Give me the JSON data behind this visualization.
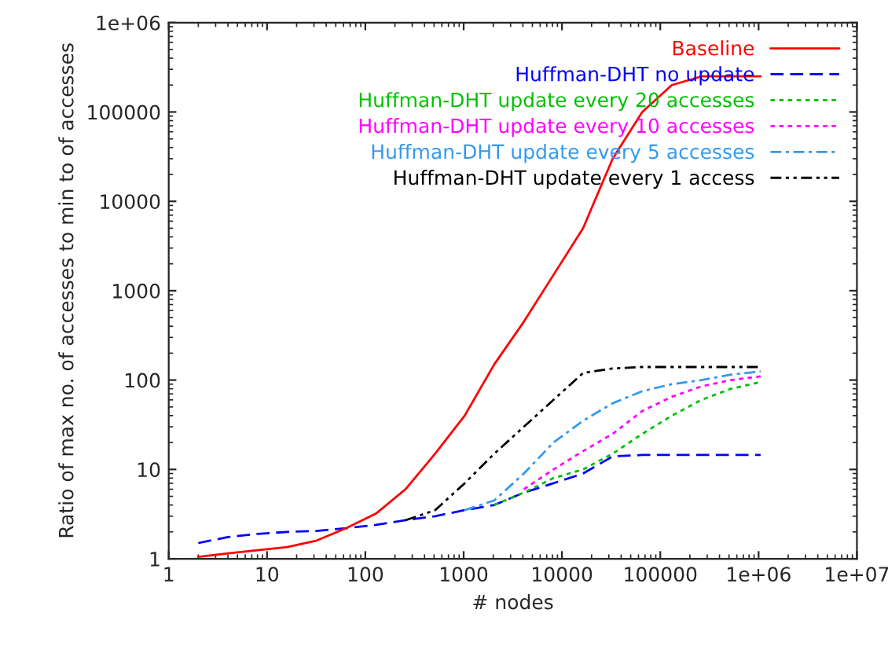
{
  "chart_data": {
    "type": "line",
    "xlabel": "# nodes",
    "ylabel": "Ratio of max no. of accesses to min to of accesses",
    "log": "xy",
    "xlim": [
      1,
      10000000
    ],
    "ylim": [
      1,
      1000000
    ],
    "xticks": [
      1,
      10,
      100,
      1000,
      10000,
      100000,
      {
        "value": 1000000,
        "label": "1e+06"
      },
      {
        "value": 10000000,
        "label": "1e+07"
      }
    ],
    "yticks": [
      1,
      10,
      100,
      1000,
      10000,
      100000,
      {
        "value": 1000000,
        "label": "1e+06"
      }
    ],
    "grid": false,
    "legend": "top right",
    "marker": "none",
    "x": [
      2,
      4,
      8,
      16,
      32,
      64,
      128,
      256,
      512,
      1024,
      2048,
      4096,
      8192,
      16384,
      32768,
      65536,
      131072,
      262144,
      524288,
      1048576
    ],
    "series": [
      {
        "name": "Baseline",
        "color": "#ff0000",
        "line_style": "solid",
        "values": [
          1.05,
          1.15,
          1.25,
          1.35,
          1.6,
          2.2,
          3.2,
          6,
          15,
          40,
          150,
          450,
          1500,
          5000,
          30000,
          100000,
          200000,
          250000,
          250000,
          250000
        ]
      },
      {
        "name": "Huffman-DHT no update",
        "color": "#0000ff",
        "line_style": "dashed",
        "values": [
          1.5,
          1.75,
          1.9,
          2.0,
          2.05,
          2.2,
          2.4,
          2.7,
          3.0,
          3.5,
          4.0,
          5.5,
          7,
          9,
          14,
          14.5,
          14.5,
          14.5,
          14.5,
          14.5
        ]
      },
      {
        "name": "Huffman-DHT update every 20 accesses",
        "color": "#00c000",
        "line_style": "dotted",
        "values": [
          null,
          null,
          null,
          null,
          null,
          null,
          null,
          null,
          null,
          null,
          4.0,
          5.5,
          8,
          10,
          15,
          25,
          40,
          60,
          80,
          95
        ]
      },
      {
        "name": "Huffman-DHT update every 10 accesses",
        "color": "#ff00ff",
        "line_style": "dotted",
        "values": [
          null,
          null,
          null,
          null,
          null,
          null,
          null,
          null,
          null,
          null,
          null,
          6,
          10,
          16,
          25,
          45,
          65,
          85,
          100,
          110
        ]
      },
      {
        "name": "Huffman-DHT update every 5 accesses",
        "color": "#3399ee",
        "line_style": "dashdot",
        "values": [
          null,
          null,
          null,
          null,
          null,
          null,
          null,
          null,
          null,
          3.5,
          4.5,
          9,
          20,
          35,
          55,
          75,
          90,
          100,
          115,
          125
        ]
      },
      {
        "name": "Huffman-DHT update every 1 access",
        "color": "#000000",
        "line_style": "dashdotdot",
        "values": [
          null,
          null,
          null,
          null,
          null,
          null,
          null,
          2.7,
          3.5,
          7,
          15,
          30,
          60,
          120,
          135,
          140,
          140,
          140,
          140,
          140
        ]
      }
    ]
  }
}
